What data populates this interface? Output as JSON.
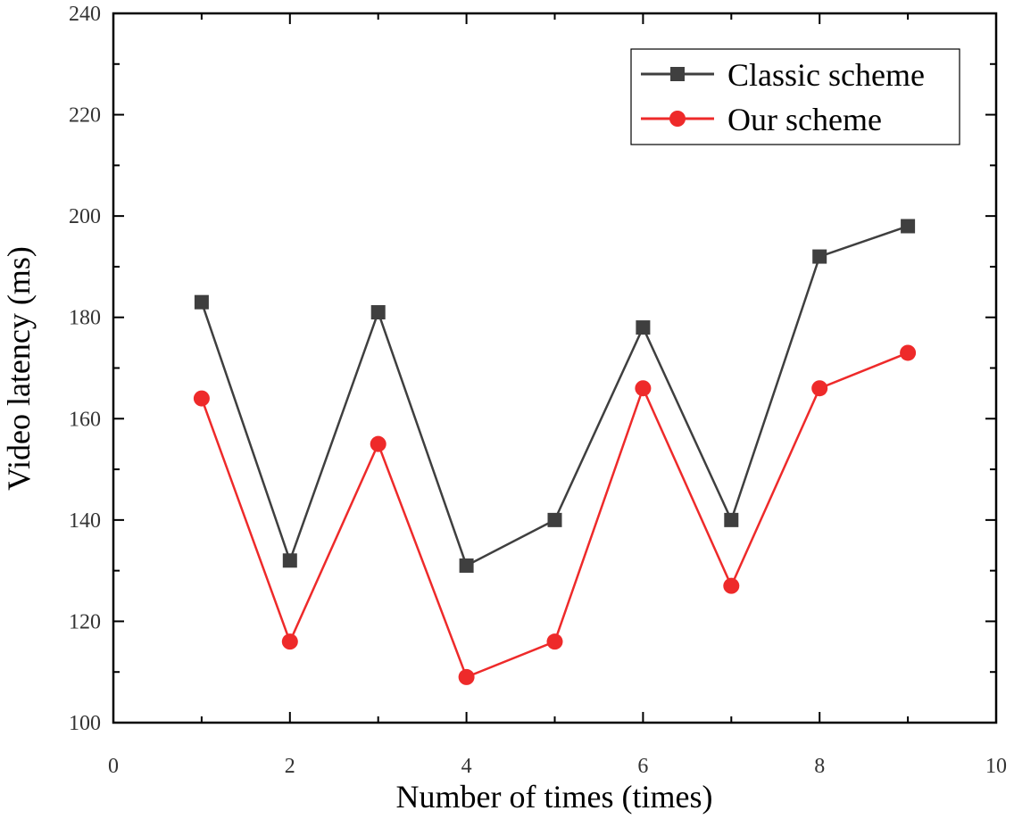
{
  "chart_data": {
    "type": "line",
    "xlabel": "Number of times (times)",
    "ylabel": "Video latency (ms)",
    "xlim": [
      0,
      10
    ],
    "ylim": [
      100,
      240
    ],
    "x_ticks": [
      "0",
      "2",
      "4",
      "6",
      "8",
      "10"
    ],
    "y_ticks": [
      "100",
      "120",
      "140",
      "160",
      "180",
      "200",
      "220",
      "240"
    ],
    "grid": false,
    "legend_position": "top-right",
    "x": [
      1,
      2,
      3,
      4,
      5,
      6,
      7,
      8,
      9
    ],
    "series": [
      {
        "name": "Classic scheme",
        "marker": "square",
        "color": "#3f3f3f",
        "values": [
          183,
          132,
          181,
          131,
          140,
          178,
          140,
          192,
          198
        ]
      },
      {
        "name": "Our scheme",
        "marker": "circle",
        "color": "#ee2a2a",
        "values": [
          164,
          116,
          155,
          109,
          116,
          166,
          127,
          166,
          173
        ]
      }
    ]
  }
}
